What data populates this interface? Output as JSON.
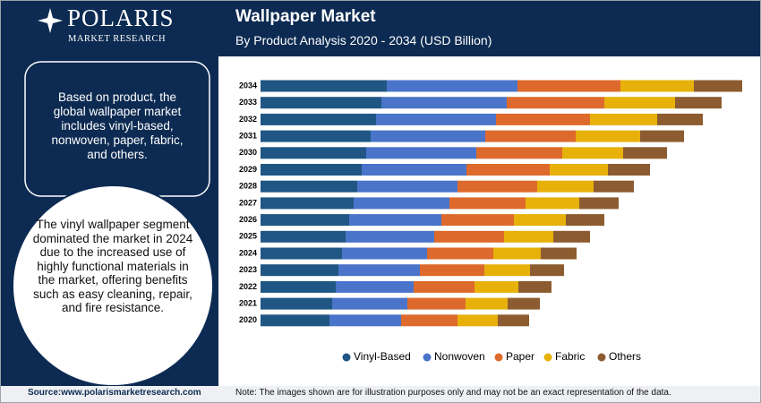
{
  "brand": {
    "name": "POLARIS",
    "tagline": "MARKET RESEARCH"
  },
  "sidebar": {
    "summary": "Based on product, the global wallpaper market includes vinyl-based, nonwoven, paper, fabric, and others.",
    "highlight": "The vinyl wallpaper segment dominated the market in 2024 due to the increased use of highly functional materials in the market, offering benefits such as easy cleaning, repair, and fire resistance."
  },
  "footer": {
    "source": "Source:www.polarismarketresearch.com",
    "note": "Note: The images shown are for illustration purposes only and may not be an exact representation of the data."
  },
  "chart_data": {
    "type": "stacked-barh",
    "title": "Wallpaper Market",
    "subtitle": "By Product Analysis 2020 - 2034 (USD Billion)",
    "categories": [
      "2020",
      "2021",
      "2022",
      "2023",
      "2024",
      "2025",
      "2026",
      "2027",
      "2028",
      "2029",
      "2030",
      "2031",
      "2032",
      "2033",
      "2034"
    ],
    "series": [
      {
        "name": "Vinyl-Based",
        "color": "#1f5684",
        "values": [
          3.85,
          4.0,
          4.2,
          4.35,
          4.55,
          4.75,
          4.95,
          5.2,
          5.4,
          5.65,
          5.9,
          6.15,
          6.45,
          6.75,
          7.05
        ]
      },
      {
        "name": "Nonwoven",
        "color": "#4a74c9",
        "values": [
          4.0,
          4.2,
          4.35,
          4.55,
          4.75,
          4.95,
          5.15,
          5.35,
          5.6,
          5.85,
          6.15,
          6.4,
          6.7,
          7.0,
          7.3
        ]
      },
      {
        "name": "Paper",
        "color": "#dd6a2c",
        "values": [
          3.15,
          3.25,
          3.4,
          3.6,
          3.7,
          3.9,
          4.05,
          4.25,
          4.45,
          4.65,
          4.8,
          5.05,
          5.25,
          5.45,
          5.75
        ]
      },
      {
        "name": "Fabric",
        "color": "#e7b10a",
        "values": [
          2.25,
          2.35,
          2.45,
          2.55,
          2.65,
          2.75,
          2.9,
          3.0,
          3.15,
          3.25,
          3.4,
          3.6,
          3.75,
          3.95,
          4.1
        ]
      },
      {
        "name": "Others",
        "color": "#8c5c30",
        "values": [
          1.75,
          1.8,
          1.85,
          1.9,
          2.0,
          2.05,
          2.15,
          2.2,
          2.25,
          2.35,
          2.45,
          2.45,
          2.55,
          2.6,
          2.7
        ]
      }
    ]
  }
}
